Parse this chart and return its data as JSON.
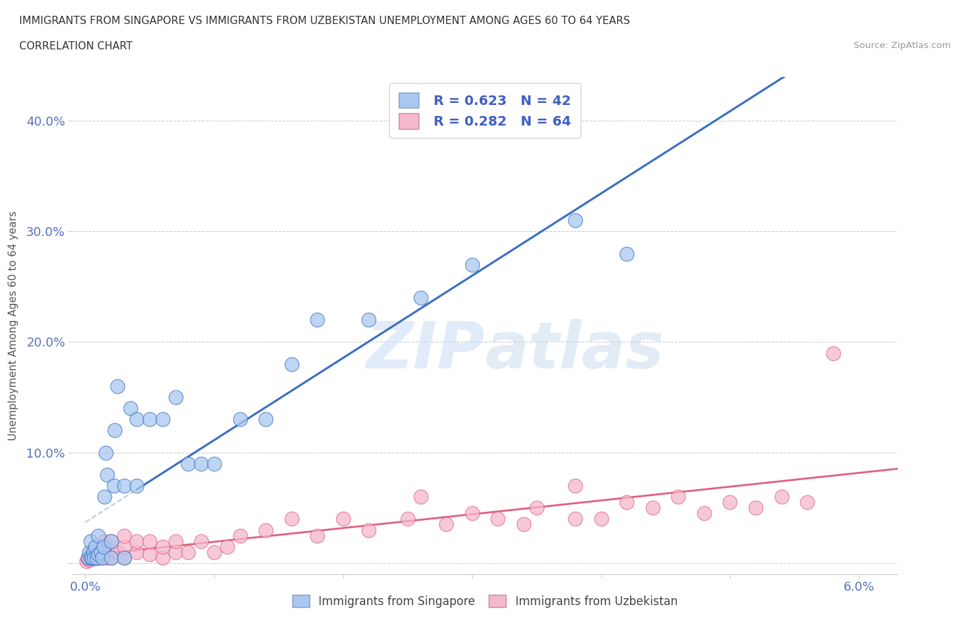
{
  "title_line1": "IMMIGRANTS FROM SINGAPORE VS IMMIGRANTS FROM UZBEKISTAN UNEMPLOYMENT AMONG AGES 60 TO 64 YEARS",
  "title_line2": "CORRELATION CHART",
  "source_text": "Source: ZipAtlas.com",
  "ylabel": "Unemployment Among Ages 60 to 64 years",
  "xlim": [
    -0.001,
    0.063
  ],
  "ylim": [
    -0.01,
    0.44
  ],
  "yticks": [
    0.0,
    0.1,
    0.2,
    0.3,
    0.4
  ],
  "ytick_labels": [
    "",
    "10.0%",
    "20.0%",
    "30.0%",
    "40.0%"
  ],
  "xticks": [
    0.0,
    0.01,
    0.02,
    0.03,
    0.04,
    0.05,
    0.06
  ],
  "xtick_labels": [
    "0.0%",
    "",
    "",
    "",
    "",
    "",
    "6.0%"
  ],
  "singapore_fill_color": "#a8c8f0",
  "uzbekistan_fill_color": "#f5b8cc",
  "singapore_line_color": "#3a6fc4",
  "uzbekistan_line_color": "#e06080",
  "legend_text_color": "#4060c0",
  "legend_r_singapore": "R = 0.623",
  "legend_n_singapore": "N = 42",
  "legend_r_uzbekistan": "R = 0.282",
  "legend_n_uzbekistan": "N = 64",
  "watermark_color": "#ccddf5",
  "background_color": "#ffffff",
  "grid_color": "#cccccc",
  "sing_x": [
    0.0002,
    0.0003,
    0.0004,
    0.0004,
    0.0005,
    0.0006,
    0.0007,
    0.0008,
    0.0009,
    0.001,
    0.001,
    0.0012,
    0.0013,
    0.0014,
    0.0015,
    0.0016,
    0.0017,
    0.002,
    0.002,
    0.0022,
    0.0023,
    0.0025,
    0.003,
    0.003,
    0.0035,
    0.004,
    0.004,
    0.005,
    0.006,
    0.007,
    0.008,
    0.009,
    0.01,
    0.012,
    0.014,
    0.016,
    0.018,
    0.022,
    0.026,
    0.03,
    0.038,
    0.042
  ],
  "sing_y": [
    0.005,
    0.01,
    0.005,
    0.02,
    0.005,
    0.01,
    0.005,
    0.015,
    0.005,
    0.008,
    0.025,
    0.01,
    0.005,
    0.015,
    0.06,
    0.1,
    0.08,
    0.005,
    0.02,
    0.07,
    0.12,
    0.16,
    0.005,
    0.07,
    0.14,
    0.07,
    0.13,
    0.13,
    0.13,
    0.15,
    0.09,
    0.09,
    0.09,
    0.13,
    0.13,
    0.18,
    0.22,
    0.22,
    0.24,
    0.27,
    0.31,
    0.28
  ],
  "uzb_x": [
    0.0001,
    0.0002,
    0.0003,
    0.0004,
    0.0005,
    0.0005,
    0.0006,
    0.0007,
    0.0008,
    0.0009,
    0.001,
    0.001,
    0.0011,
    0.0012,
    0.0013,
    0.0014,
    0.0015,
    0.0016,
    0.0017,
    0.0018,
    0.002,
    0.002,
    0.002,
    0.0025,
    0.003,
    0.003,
    0.003,
    0.004,
    0.004,
    0.005,
    0.005,
    0.006,
    0.006,
    0.007,
    0.007,
    0.008,
    0.009,
    0.01,
    0.011,
    0.012,
    0.014,
    0.016,
    0.018,
    0.02,
    0.022,
    0.025,
    0.028,
    0.03,
    0.032,
    0.035,
    0.038,
    0.04,
    0.042,
    0.044,
    0.046,
    0.048,
    0.05,
    0.052,
    0.054,
    0.056,
    0.026,
    0.034,
    0.038,
    0.058
  ],
  "uzb_y": [
    0.002,
    0.004,
    0.003,
    0.005,
    0.004,
    0.01,
    0.005,
    0.008,
    0.004,
    0.01,
    0.005,
    0.015,
    0.006,
    0.01,
    0.005,
    0.012,
    0.02,
    0.01,
    0.005,
    0.015,
    0.005,
    0.012,
    0.02,
    0.01,
    0.005,
    0.015,
    0.025,
    0.01,
    0.02,
    0.008,
    0.02,
    0.005,
    0.015,
    0.01,
    0.02,
    0.01,
    0.02,
    0.01,
    0.015,
    0.025,
    0.03,
    0.04,
    0.025,
    0.04,
    0.03,
    0.04,
    0.035,
    0.045,
    0.04,
    0.05,
    0.04,
    0.04,
    0.055,
    0.05,
    0.06,
    0.045,
    0.055,
    0.05,
    0.06,
    0.055,
    0.06,
    0.035,
    0.07,
    0.19
  ]
}
